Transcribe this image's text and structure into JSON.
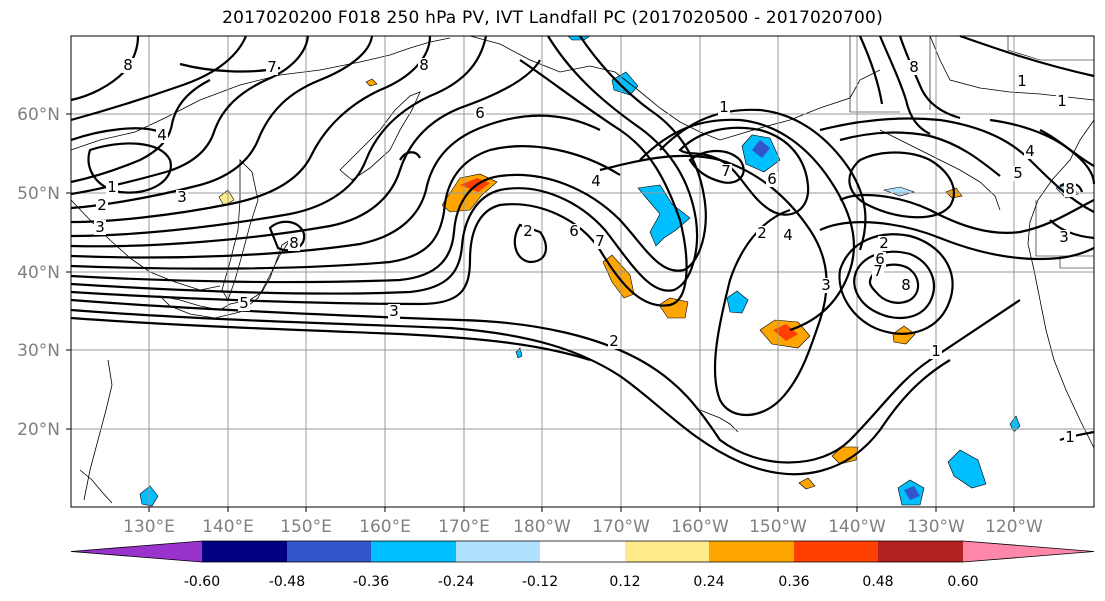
{
  "title": "2017020200 F018 250 hPa PV, IVT Landfall PC (2017020500 - 2017020700)",
  "lat_labels": [
    "60°N",
    "50°N",
    "40°N",
    "30°N",
    "20°N"
  ],
  "lon_labels": [
    "130°E",
    "140°E",
    "150°E",
    "160°E",
    "170°E",
    "180°W",
    "170°W",
    "160°W",
    "150°W",
    "140°W",
    "130°W",
    "120°W"
  ],
  "colorbar": {
    "colors": [
      "#9933cc",
      "#000080",
      "#3355cc",
      "#00bfff",
      "#b0e2ff",
      "#ffffff",
      "#ffea8c",
      "#ffa500",
      "#ff4000",
      "#b22222",
      "#ff88aa"
    ],
    "tick_labels": [
      "-0.60",
      "-0.48",
      "-0.36",
      "-0.24",
      "-0.12",
      "0.12",
      "0.24",
      "0.36",
      "0.48",
      "0.60"
    ]
  },
  "pv_contour_labels": [
    "8",
    "7",
    "8",
    "4",
    "1",
    "2",
    "3",
    "3",
    "8",
    "5",
    "3",
    "2",
    "6",
    "4",
    "6",
    "7",
    "2",
    "1",
    "7",
    "6",
    "2",
    "4",
    "3",
    "2",
    "6",
    "8",
    "7",
    "1",
    "5",
    "3",
    "8",
    "1",
    "1",
    "8",
    "4",
    "1"
  ]
}
